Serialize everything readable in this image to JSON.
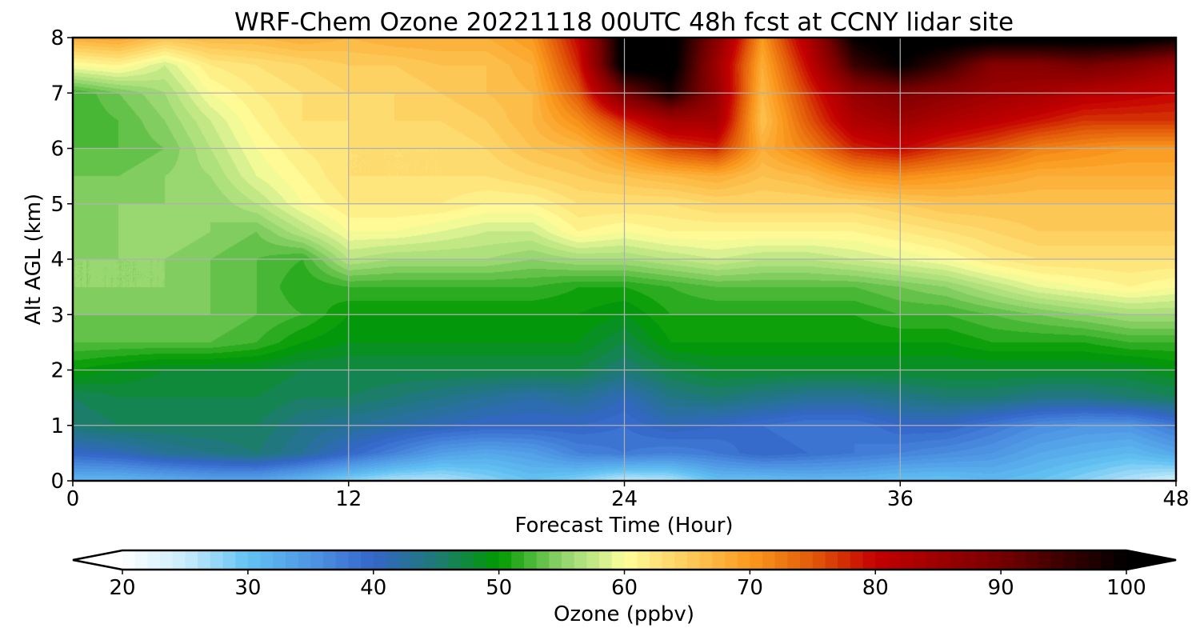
{
  "chart_data": {
    "type": "heatmap",
    "subtype": "filled-contour time-height cross-section",
    "title": "WRF-Chem Ozone  20221118 00UTC 48h fcst at CCNY lidar site",
    "xlabel": "Forecast Time (Hour)",
    "ylabel": "Alt AGL (km)",
    "xlim": [
      0,
      48
    ],
    "ylim": [
      0,
      8
    ],
    "xticks": [
      0,
      12,
      24,
      36,
      48
    ],
    "yticks": [
      0,
      1,
      2,
      3,
      4,
      5,
      6,
      7,
      8
    ],
    "grid": true,
    "x": [
      0,
      2,
      4,
      6,
      8,
      10,
      12,
      14,
      16,
      18,
      20,
      22,
      24,
      26,
      28,
      30,
      32,
      34,
      36,
      38,
      40,
      42,
      44,
      46,
      48
    ],
    "y": [
      0,
      0.5,
      1,
      1.5,
      2,
      2.5,
      3,
      3.5,
      4,
      4.5,
      5,
      5.5,
      6,
      6.5,
      7,
      7.5,
      8
    ],
    "z_units": "ppbv",
    "z": [
      [
        31,
        31,
        32,
        33,
        33,
        31,
        28,
        26,
        26,
        28,
        30,
        28,
        25,
        26,
        30,
        30,
        31,
        31,
        30,
        30,
        31,
        30,
        28,
        26,
        24
      ],
      [
        40,
        41,
        43,
        44,
        45,
        43,
        40,
        37,
        34,
        33,
        34,
        37,
        38,
        37,
        38,
        40,
        39,
        38,
        37,
        36,
        35,
        33,
        32,
        31,
        33
      ],
      [
        45,
        46,
        46,
        46,
        46,
        44,
        43,
        42,
        41,
        40,
        40,
        40,
        39,
        41,
        40,
        39,
        38,
        38,
        40,
        40,
        38,
        36,
        35,
        35,
        38
      ],
      [
        46,
        47,
        47,
        47,
        47,
        46,
        46,
        45,
        44,
        43,
        42,
        43,
        41,
        44,
        45,
        44,
        43,
        43,
        44,
        45,
        45,
        44,
        44,
        45,
        46
      ],
      [
        50,
        49,
        48,
        48,
        48,
        47,
        47,
        47,
        47,
        47,
        47,
        47,
        45,
        47,
        48,
        48,
        48,
        48,
        48,
        48,
        48,
        48,
        48,
        48,
        49
      ],
      [
        53,
        53,
        53,
        53,
        52,
        50,
        49,
        49,
        49,
        49,
        49,
        49,
        47,
        50,
        50,
        50,
        50,
        50,
        50,
        50,
        51,
        51,
        51,
        52,
        52
      ],
      [
        54,
        54,
        54,
        54,
        53,
        52,
        50,
        50,
        50,
        50,
        50,
        50,
        49,
        51,
        51,
        51,
        51,
        51,
        52,
        52,
        53,
        54,
        55,
        56,
        56
      ],
      [
        55,
        55,
        55,
        54,
        53,
        51,
        52,
        52,
        52,
        52,
        52,
        51,
        51,
        52,
        53,
        53,
        53,
        53,
        54,
        55,
        57,
        59,
        60,
        61,
        60
      ],
      [
        55,
        55,
        55,
        54,
        53,
        52,
        57,
        56,
        56,
        56,
        55,
        56,
        56,
        57,
        58,
        57,
        57,
        58,
        59,
        60,
        62,
        63,
        63,
        63,
        63
      ],
      [
        54,
        55,
        56,
        55,
        54,
        57,
        60,
        60,
        59,
        58,
        58,
        61,
        60,
        61,
        61,
        61,
        61,
        61,
        62,
        63,
        64,
        65,
        65,
        65,
        65
      ],
      [
        55,
        55,
        55,
        55,
        57,
        60,
        62,
        62,
        62,
        61,
        61,
        63,
        63,
        63,
        64,
        64,
        64,
        64,
        65,
        66,
        66,
        66,
        66,
        66,
        66
      ],
      [
        54,
        54,
        55,
        56,
        59,
        61,
        63,
        63,
        63,
        63,
        64,
        65,
        66,
        67,
        68,
        66,
        67,
        70,
        71,
        70,
        69,
        68,
        68,
        68,
        68
      ],
      [
        53,
        53,
        54,
        57,
        60,
        62,
        63,
        63,
        63,
        64,
        66,
        67,
        71,
        76,
        78,
        68,
        72,
        78,
        80,
        77,
        75,
        72,
        71,
        70,
        70
      ],
      [
        52,
        53,
        55,
        58,
        61,
        63,
        63,
        64,
        64,
        65,
        67,
        71,
        78,
        84,
        84,
        66,
        75,
        83,
        85,
        83,
        81,
        79,
        77,
        77,
        77
      ],
      [
        52,
        54,
        56,
        60,
        62,
        63,
        64,
        64,
        65,
        66,
        67,
        75,
        90,
        98,
        86,
        67,
        77,
        86,
        89,
        87,
        85,
        84,
        82,
        81,
        80
      ],
      [
        60,
        61,
        58,
        62,
        63,
        64,
        65,
        65,
        66,
        66,
        68,
        78,
        102,
        102,
        85,
        68,
        80,
        95,
        100,
        95,
        88,
        88,
        90,
        88,
        85
      ],
      [
        68,
        69,
        66,
        67,
        67,
        68,
        67,
        68,
        68,
        68,
        70,
        80,
        102,
        102,
        88,
        70,
        83,
        100,
        102,
        102,
        102,
        102,
        102,
        102,
        100
      ]
    ],
    "colorbar": {
      "label": "Ozone  (ppbv)",
      "min": 20,
      "max": 100,
      "ticks": [
        20,
        30,
        40,
        50,
        60,
        70,
        80,
        90,
        100
      ],
      "extend": "both",
      "stops": [
        {
          "v": 20,
          "color": "#ffffff"
        },
        {
          "v": 25,
          "color": "#c9ecfb"
        },
        {
          "v": 30,
          "color": "#62c2f3"
        },
        {
          "v": 36,
          "color": "#4a8de0"
        },
        {
          "v": 40,
          "color": "#3466c8"
        },
        {
          "v": 45,
          "color": "#1e7a76"
        },
        {
          "v": 50,
          "color": "#009a00"
        },
        {
          "v": 55,
          "color": "#8fd36a"
        },
        {
          "v": 58,
          "color": "#ccec8c"
        },
        {
          "v": 60,
          "color": "#ffff9b"
        },
        {
          "v": 65,
          "color": "#fdcc5c"
        },
        {
          "v": 70,
          "color": "#fa9a1e"
        },
        {
          "v": 75,
          "color": "#e25a08"
        },
        {
          "v": 80,
          "color": "#c40000"
        },
        {
          "v": 90,
          "color": "#760000"
        },
        {
          "v": 100,
          "color": "#000000"
        }
      ]
    }
  }
}
